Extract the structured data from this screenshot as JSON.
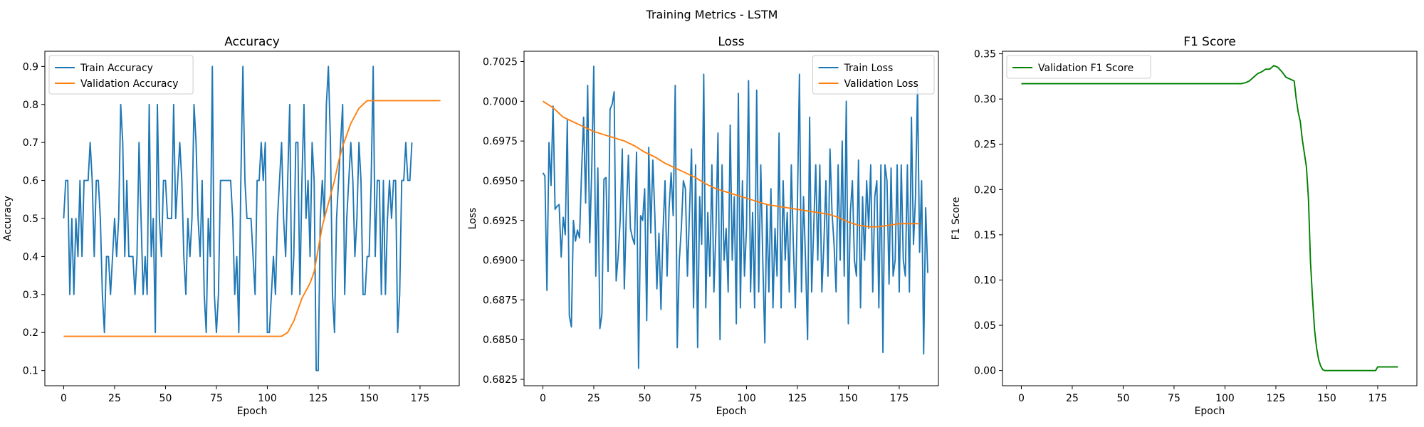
{
  "figure_title": "Training Metrics - LSTM",
  "chart_data": [
    {
      "type": "line",
      "title": "Accuracy",
      "xlabel": "Epoch",
      "ylabel": "Accuracy",
      "xlim": [
        -9.25,
        194.25
      ],
      "ylim": [
        0.06,
        0.94
      ],
      "xticks": [
        0,
        25,
        50,
        75,
        100,
        125,
        150,
        175
      ],
      "yticks": [
        0.1,
        0.2,
        0.3,
        0.4,
        0.5,
        0.6,
        0.7,
        0.8,
        0.9
      ],
      "ytick_labels": [
        "0.1",
        "0.2",
        "0.3",
        "0.4",
        "0.5",
        "0.6",
        "0.7",
        "0.8",
        "0.9"
      ],
      "legend_position": "upper-left",
      "grid": false,
      "series": [
        {
          "name": "Train Accuracy",
          "color": "#1f77b4",
          "x_start": 0,
          "values": [
            0.5,
            0.6,
            0.6,
            0.3,
            0.5,
            0.3,
            0.5,
            0.4,
            0.6,
            0.4,
            0.6,
            0.6,
            0.6,
            0.7,
            0.6,
            0.4,
            0.6,
            0.6,
            0.5,
            0.3,
            0.2,
            0.4,
            0.4,
            0.3,
            0.4,
            0.5,
            0.4,
            0.5,
            0.8,
            0.7,
            0.4,
            0.6,
            0.4,
            0.4,
            0.4,
            0.3,
            0.4,
            0.7,
            0.5,
            0.3,
            0.4,
            0.3,
            0.8,
            0.4,
            0.5,
            0.2,
            0.8,
            0.5,
            0.4,
            0.6,
            0.6,
            0.5,
            0.5,
            0.5,
            0.8,
            0.5,
            0.6,
            0.7,
            0.6,
            0.4,
            0.3,
            0.5,
            0.4,
            0.5,
            0.8,
            0.7,
            0.5,
            0.4,
            0.6,
            0.3,
            0.2,
            0.5,
            0.4,
            0.9,
            0.3,
            0.2,
            0.3,
            0.6,
            0.6,
            0.6,
            0.6,
            0.6,
            0.6,
            0.5,
            0.3,
            0.4,
            0.2,
            0.6,
            0.9,
            0.6,
            0.5,
            0.5,
            0.5,
            0.4,
            0.3,
            0.6,
            0.6,
            0.7,
            0.6,
            0.7,
            0.2,
            0.2,
            0.3,
            0.4,
            0.3,
            0.5,
            0.6,
            0.7,
            0.5,
            0.4,
            0.6,
            0.8,
            0.3,
            0.4,
            0.7,
            0.7,
            0.3,
            0.6,
            0.8,
            0.5,
            0.6,
            0.4,
            0.7,
            0.6,
            0.1,
            0.1,
            0.5,
            0.6,
            0.5,
            0.8,
            0.9,
            0.7,
            0.3,
            0.2,
            0.5,
            0.6,
            0.7,
            0.8,
            0.3,
            0.5,
            0.6,
            0.7,
            0.6,
            0.4,
            0.5,
            0.7,
            0.6,
            0.3,
            0.3,
            0.4,
            0.4,
            0.6,
            0.9,
            0.4,
            0.6,
            0.6,
            0.3,
            0.6,
            0.3,
            0.5,
            0.6,
            0.5,
            0.6,
            0.6,
            0.2,
            0.3,
            0.6,
            0.6,
            0.7,
            0.6,
            0.6,
            0.7
          ]
        },
        {
          "name": "Validation Accuracy",
          "color": "#ff7f0e",
          "x_start": 0,
          "x": [
            0,
            20,
            40,
            60,
            80,
            100,
            107,
            110,
            113,
            115,
            117,
            119,
            121,
            123,
            125,
            127,
            129,
            131,
            133,
            135,
            137,
            139,
            141,
            143,
            145,
            147,
            149,
            151,
            155,
            160,
            165,
            170,
            175,
            180,
            185
          ],
          "values": [
            0.19,
            0.19,
            0.19,
            0.19,
            0.19,
            0.19,
            0.19,
            0.2,
            0.23,
            0.26,
            0.29,
            0.31,
            0.33,
            0.36,
            0.42,
            0.48,
            0.52,
            0.56,
            0.6,
            0.65,
            0.69,
            0.72,
            0.75,
            0.77,
            0.79,
            0.8,
            0.81,
            0.81,
            0.81,
            0.81,
            0.81,
            0.81,
            0.81,
            0.81,
            0.81
          ]
        }
      ]
    },
    {
      "type": "line",
      "title": "Loss",
      "xlabel": "Epoch",
      "ylabel": "Loss",
      "xlim": [
        -9.25,
        194.25
      ],
      "ylim": [
        0.6821,
        0.70315
      ],
      "xticks": [
        0,
        25,
        50,
        75,
        100,
        125,
        150,
        175
      ],
      "yticks": [
        0.6825,
        0.685,
        0.6875,
        0.69,
        0.6925,
        0.695,
        0.6975,
        0.7,
        0.7025
      ],
      "ytick_labels": [
        "0.6825",
        "0.6850",
        "0.6875",
        "0.6900",
        "0.6925",
        "0.6950",
        "0.6975",
        "0.7000",
        "0.7025"
      ],
      "legend_position": "upper-right",
      "grid": false,
      "series": [
        {
          "name": "Train Loss",
          "color": "#1f77b4",
          "x_start": 0,
          "values": [
            0.6955,
            0.6953,
            0.6881,
            0.6974,
            0.6947,
            0.6997,
            0.6932,
            0.6934,
            0.6935,
            0.6902,
            0.6927,
            0.6916,
            0.6988,
            0.6865,
            0.6858,
            0.6925,
            0.6912,
            0.6919,
            0.6914,
            0.6955,
            0.699,
            0.6936,
            0.701,
            0.6911,
            0.6957,
            0.7022,
            0.689,
            0.6958,
            0.6857,
            0.6866,
            0.6951,
            0.6952,
            0.6893,
            0.6995,
            0.6998,
            0.7006,
            0.6887,
            0.6903,
            0.6926,
            0.697,
            0.6882,
            0.693,
            0.6966,
            0.692,
            0.6914,
            0.691,
            0.6968,
            0.6832,
            0.6928,
            0.6925,
            0.6945,
            0.6862,
            0.6971,
            0.6917,
            0.6963,
            0.6928,
            0.6882,
            0.6917,
            0.6869,
            0.6918,
            0.695,
            0.689,
            0.6933,
            0.6955,
            0.6928,
            0.701,
            0.6845,
            0.69,
            0.692,
            0.695,
            0.6945,
            0.689,
            0.693,
            0.697,
            0.687,
            0.696,
            0.6845,
            0.694,
            0.691,
            0.7017,
            0.687,
            0.693,
            0.689,
            0.696,
            0.688,
            0.692,
            0.698,
            0.685,
            0.696,
            0.69,
            0.692,
            0.688,
            0.6985,
            0.69,
            0.694,
            0.686,
            0.7005,
            0.687,
            0.695,
            0.689,
            0.692,
            0.7013,
            0.688,
            0.693,
            0.687,
            0.7007,
            0.688,
            0.696,
            0.69,
            0.6848,
            0.6935,
            0.688,
            0.6945,
            0.687,
            0.692,
            0.689,
            0.698,
            0.687,
            0.695,
            0.69,
            0.693,
            0.688,
            0.696,
            0.691,
            0.687,
            0.6935,
            0.7017,
            0.688,
            0.694,
            0.69,
            0.685,
            0.699,
            0.688,
            0.692,
            0.696,
            0.69,
            0.696,
            0.688,
            0.691,
            0.695,
            0.689,
            0.697,
            0.693,
            0.691,
            0.688,
            0.696,
            0.69,
            0.6975,
            0.689,
            0.7,
            0.686,
            0.693,
            0.695,
            0.69,
            0.689,
            0.6963,
            0.687,
            0.694,
            0.69,
            0.695,
            0.692,
            0.696,
            0.688,
            0.694,
            0.695,
            0.687,
            0.696,
            0.6842,
            0.696,
            0.695,
            0.6885,
            0.6958,
            0.689,
            0.69,
            0.696,
            0.688,
            0.696,
            0.69,
            0.689,
            0.696,
            0.688,
            0.699,
            0.691,
            0.694,
            0.701,
            0.6905,
            0.695,
            0.6841,
            0.6933,
            0.6892
          ]
        },
        {
          "name": "Validation Loss",
          "color": "#ff7f0e",
          "x_start": 0,
          "x": [
            0,
            5,
            10,
            15,
            20,
            25,
            30,
            35,
            40,
            45,
            50,
            55,
            60,
            65,
            70,
            75,
            80,
            85,
            90,
            95,
            100,
            105,
            110,
            115,
            120,
            125,
            130,
            135,
            140,
            145,
            150,
            155,
            160,
            165,
            170,
            175,
            180,
            185
          ],
          "values": [
            0.7,
            0.6996,
            0.699,
            0.6987,
            0.6984,
            0.6981,
            0.6979,
            0.6977,
            0.6975,
            0.6972,
            0.6968,
            0.6965,
            0.6961,
            0.6958,
            0.6955,
            0.6952,
            0.6948,
            0.6945,
            0.6943,
            0.6941,
            0.6939,
            0.6937,
            0.6935,
            0.6934,
            0.6933,
            0.6932,
            0.6931,
            0.693,
            0.6929,
            0.6927,
            0.6924,
            0.6922,
            0.6921,
            0.6921,
            0.6922,
            0.6923,
            0.6923,
            0.6923
          ]
        }
      ]
    },
    {
      "type": "line",
      "title": "F1 Score",
      "xlabel": "Epoch",
      "ylabel": "F1 Score",
      "xlim": [
        -9.25,
        194.25
      ],
      "ylim": [
        -0.0168,
        0.3528
      ],
      "xticks": [
        0,
        25,
        50,
        75,
        100,
        125,
        150,
        175
      ],
      "yticks": [
        0,
        0.05,
        0.1,
        0.15,
        0.2,
        0.25,
        0.3,
        0.35
      ],
      "ytick_labels": [
        "0.00",
        "0.05",
        "0.10",
        "0.15",
        "0.20",
        "0.25",
        "0.30",
        "0.35"
      ],
      "legend_position": "upper-left",
      "grid": false,
      "series": [
        {
          "name": "Validation F1 Score",
          "color": "#008000",
          "x_start": 0,
          "x": [
            0,
            50,
            100,
            108,
            110,
            112,
            114,
            116,
            118,
            120,
            122,
            124,
            126,
            128,
            130,
            132,
            134,
            135,
            136,
            137,
            138,
            139,
            140,
            141,
            142,
            143,
            144,
            145,
            146,
            147,
            148,
            149,
            150,
            155,
            160,
            165,
            170,
            174,
            175,
            180,
            185
          ],
          "values": [
            0.317,
            0.317,
            0.317,
            0.317,
            0.318,
            0.32,
            0.324,
            0.328,
            0.33,
            0.333,
            0.333,
            0.337,
            0.335,
            0.33,
            0.324,
            0.322,
            0.32,
            0.3,
            0.285,
            0.275,
            0.255,
            0.24,
            0.225,
            0.19,
            0.12,
            0.08,
            0.045,
            0.025,
            0.012,
            0.005,
            0.001,
            0.0,
            0.0,
            0.0,
            0.0,
            0.0,
            0.0,
            0.0,
            0.004,
            0.004,
            0.004
          ]
        }
      ]
    }
  ]
}
